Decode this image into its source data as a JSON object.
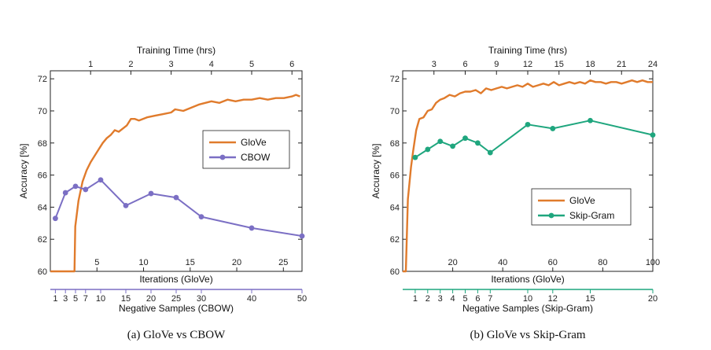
{
  "colors": {
    "glove": "#E07B2C",
    "cbow": "#7B6FC4",
    "skipgram": "#1FA67E",
    "axis": "#222222"
  },
  "chart_data": [
    {
      "type": "line",
      "caption": "(a)  GloVe vs CBOW",
      "ylabel": "Accuracy [%]",
      "ylim": [
        60,
        72.5
      ],
      "yticks": [
        60,
        62,
        64,
        66,
        68,
        70,
        72
      ],
      "top_axis": {
        "label": "Training Time (hrs)",
        "range": [
          0,
          6.25
        ],
        "ticks": [
          1,
          2,
          3,
          4,
          5,
          6
        ]
      },
      "bottom_axis_1": {
        "label": "Iterations (GloVe)",
        "range": [
          0,
          27
        ],
        "ticks": [
          5,
          10,
          15,
          20,
          25
        ],
        "color": "#E07B2C"
      },
      "bottom_axis_2": {
        "label": "Negative Samples (CBOW)",
        "range": [
          0,
          50
        ],
        "ticks": [
          1,
          3,
          5,
          7,
          10,
          15,
          20,
          25,
          30,
          40,
          50
        ],
        "color": "#7B6FC4"
      },
      "legend": {
        "position": "right",
        "entries": [
          "GloVe",
          "CBOW"
        ]
      },
      "series": [
        {
          "name": "GloVe",
          "axis": "top",
          "x": [
            0,
            0.6,
            0.62,
            0.7,
            0.8,
            0.9,
            1.0,
            1.1,
            1.2,
            1.3,
            1.4,
            1.5,
            1.6,
            1.7,
            1.8,
            1.9,
            2.0,
            2.1,
            2.2,
            2.4,
            2.6,
            2.8,
            3.0,
            3.1,
            3.3,
            3.5,
            3.7,
            4.0,
            4.2,
            4.4,
            4.6,
            4.8,
            5.0,
            5.2,
            5.4,
            5.6,
            5.8,
            6.0,
            6.1,
            6.2
          ],
          "values": [
            60,
            60,
            62.8,
            64.4,
            65.6,
            66.3,
            66.8,
            67.2,
            67.6,
            68.0,
            68.3,
            68.5,
            68.8,
            68.7,
            68.9,
            69.1,
            69.5,
            69.5,
            69.4,
            69.6,
            69.7,
            69.8,
            69.9,
            70.1,
            70.0,
            70.2,
            70.4,
            70.6,
            70.5,
            70.7,
            70.6,
            70.7,
            70.7,
            70.8,
            70.7,
            70.8,
            70.8,
            70.9,
            71.0,
            70.9
          ]
        },
        {
          "name": "CBOW",
          "axis": "bottom_2",
          "x": [
            1,
            3,
            5,
            7,
            10,
            15,
            20,
            25,
            30,
            40,
            50
          ],
          "values": [
            63.3,
            64.9,
            65.3,
            65.1,
            65.7,
            64.1,
            64.85,
            64.6,
            63.4,
            62.7,
            62.2
          ]
        }
      ]
    },
    {
      "type": "line",
      "caption": "(b)  GloVe vs Skip-Gram",
      "ylabel": "Accuracy [%]",
      "ylim": [
        60,
        72.5
      ],
      "yticks": [
        60,
        62,
        64,
        66,
        68,
        70,
        72
      ],
      "top_axis": {
        "label": "Training Time (hrs)",
        "range": [
          0,
          24
        ],
        "ticks": [
          3,
          6,
          9,
          12,
          15,
          18,
          21,
          24
        ]
      },
      "bottom_axis_1": {
        "label": "Iterations (GloVe)",
        "range": [
          0,
          100
        ],
        "ticks": [
          20,
          40,
          60,
          80,
          100
        ],
        "color": "#E07B2C"
      },
      "bottom_axis_2": {
        "label": "Negative Samples (Skip-Gram)",
        "range": [
          0,
          20
        ],
        "ticks": [
          1,
          2,
          3,
          4,
          5,
          6,
          7,
          10,
          12,
          15,
          20
        ],
        "color": "#1FA67E"
      },
      "legend": {
        "position": "lower right",
        "entries": [
          "GloVe",
          "Skip-Gram"
        ]
      },
      "series": [
        {
          "name": "GloVe",
          "axis": "top",
          "x": [
            0,
            0.3,
            0.5,
            0.8,
            1.0,
            1.3,
            1.6,
            2.0,
            2.4,
            2.8,
            3.2,
            3.6,
            4.0,
            4.5,
            5.0,
            5.5,
            6.0,
            6.5,
            7.0,
            7.5,
            8.0,
            8.5,
            9.0,
            9.5,
            10.0,
            10.5,
            11.0,
            11.5,
            12.0,
            12.5,
            13.0,
            13.5,
            14.0,
            14.5,
            15.0,
            15.5,
            16.0,
            16.5,
            17.0,
            17.5,
            18.0,
            18.5,
            19.0,
            19.5,
            20.0,
            20.5,
            21.0,
            21.5,
            22.0,
            22.5,
            23.0,
            23.5,
            24.0
          ],
          "values": [
            60,
            60,
            64.5,
            66.5,
            67.5,
            68.8,
            69.5,
            69.6,
            70.0,
            70.1,
            70.5,
            70.7,
            70.8,
            71.0,
            70.9,
            71.1,
            71.2,
            71.2,
            71.3,
            71.1,
            71.4,
            71.3,
            71.4,
            71.5,
            71.4,
            71.5,
            71.6,
            71.5,
            71.7,
            71.5,
            71.6,
            71.7,
            71.6,
            71.8,
            71.6,
            71.7,
            71.8,
            71.7,
            71.8,
            71.7,
            71.9,
            71.8,
            71.8,
            71.7,
            71.8,
            71.8,
            71.7,
            71.8,
            71.9,
            71.8,
            71.9,
            71.8,
            71.8
          ]
        },
        {
          "name": "Skip-Gram",
          "axis": "bottom_2",
          "x": [
            1,
            2,
            3,
            4,
            5,
            6,
            7,
            10,
            12,
            15,
            20
          ],
          "values": [
            67.1,
            67.6,
            68.1,
            67.8,
            68.3,
            68.0,
            67.4,
            69.15,
            68.9,
            69.4,
            68.5
          ]
        }
      ]
    }
  ]
}
